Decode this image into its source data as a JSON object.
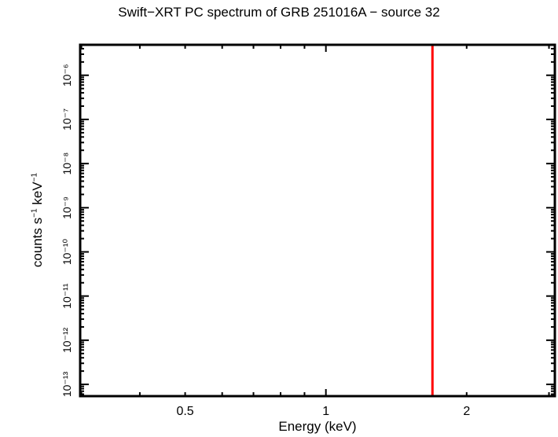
{
  "chart_data": {
    "type": "line",
    "title": "Swift−XRT PC spectrum of GRB 251016A − source 32",
    "xlabel": "Energy (keV)",
    "ylabel": "counts s⁻¹ keV⁻¹",
    "xscale": "log",
    "yscale": "log",
    "xlim": [
      0.297,
      3.1
    ],
    "ylim": [
      5.2e-14,
      5.1e-06
    ],
    "x_ticks": [
      0.5,
      1,
      2
    ],
    "x_tick_labels": [
      "0.5",
      "1",
      "2"
    ],
    "y_ticks": [
      1e-13,
      1e-12,
      1e-11,
      1e-10,
      1e-09,
      1e-08,
      1e-07,
      1e-06
    ],
    "y_tick_labels": [
      "10⁻¹³",
      "10⁻¹²",
      "10⁻¹¹",
      "10⁻¹⁰",
      "10⁻⁹",
      "10⁻⁸",
      "10⁻⁷",
      "10⁻⁶"
    ],
    "grid": false,
    "legend": null,
    "series": [
      {
        "name": "vertical-marker",
        "color": "#ff0000",
        "type": "vline",
        "x": 1.69
      }
    ]
  },
  "labels": {
    "title": "Swift−XRT PC spectrum of GRB 251016A − source 32",
    "xlabel": "Energy (keV)",
    "ylabel_main": "counts s",
    "ylabel_exp1": "−1",
    "ylabel_mid": " keV",
    "ylabel_exp2": "−1"
  }
}
